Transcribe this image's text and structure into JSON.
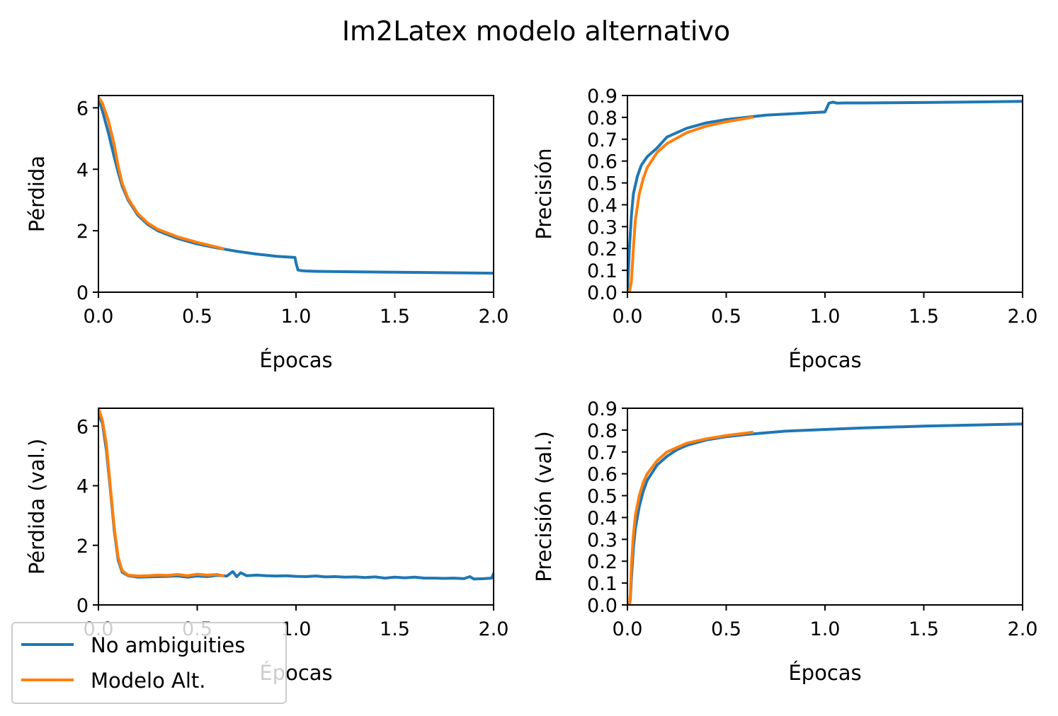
{
  "figure": {
    "title": "Im2Latex modelo alternativo",
    "colors": {
      "no_ambiguities": "#1f77b4",
      "modelo_alt": "#ff7f0e"
    }
  },
  "legend": {
    "placement": "lower-left",
    "entries": [
      {
        "label": "No ambiguities",
        "color": "#1f77b4"
      },
      {
        "label": "Modelo Alt.",
        "color": "#ff7f0e"
      }
    ]
  },
  "chart_data": [
    {
      "type": "line",
      "xlabel": "Épocas",
      "ylabel": "Pérdida",
      "xlim": [
        0,
        2.0
      ],
      "ylim": [
        0,
        6.4
      ],
      "xticks": [
        "0.0",
        "0.5",
        "1.0",
        "1.5",
        "2.0"
      ],
      "yticks": [
        "0",
        "2",
        "4",
        "6"
      ],
      "series": [
        {
          "name": "No ambiguities",
          "color": "#1f77b4",
          "x": [
            0,
            0.02,
            0.05,
            0.08,
            0.1,
            0.12,
            0.15,
            0.2,
            0.25,
            0.3,
            0.4,
            0.5,
            0.6,
            0.7,
            0.8,
            0.9,
            0.995,
            1.0,
            1.01,
            1.03,
            1.05,
            1.1,
            1.2,
            1.5,
            2.0
          ],
          "y": [
            6.3,
            5.9,
            5.2,
            4.4,
            3.9,
            3.45,
            3.0,
            2.5,
            2.2,
            2.0,
            1.75,
            1.57,
            1.44,
            1.33,
            1.24,
            1.17,
            1.13,
            0.95,
            0.72,
            0.7,
            0.69,
            0.68,
            0.67,
            0.65,
            0.62
          ]
        },
        {
          "name": "Modelo Alt.",
          "color": "#ff7f0e",
          "x": [
            0,
            0.02,
            0.05,
            0.08,
            0.1,
            0.12,
            0.15,
            0.2,
            0.25,
            0.3,
            0.4,
            0.5,
            0.63
          ],
          "y": [
            6.35,
            6.15,
            5.6,
            4.8,
            4.1,
            3.55,
            3.05,
            2.55,
            2.25,
            2.05,
            1.8,
            1.62,
            1.42
          ]
        }
      ]
    },
    {
      "type": "line",
      "xlabel": "Épocas",
      "ylabel": "Precisión",
      "xlim": [
        0,
        2.0
      ],
      "ylim": [
        0,
        0.9
      ],
      "xticks": [
        "0.0",
        "0.5",
        "1.0",
        "1.5",
        "2.0"
      ],
      "yticks": [
        "0.0",
        "0.1",
        "0.2",
        "0.3",
        "0.4",
        "0.5",
        "0.6",
        "0.7",
        "0.8",
        "0.9"
      ],
      "series": [
        {
          "name": "No ambiguities",
          "color": "#1f77b4",
          "x": [
            0,
            0.01,
            0.02,
            0.03,
            0.05,
            0.07,
            0.1,
            0.15,
            0.2,
            0.3,
            0.4,
            0.5,
            0.6,
            0.7,
            0.8,
            0.9,
            1.0,
            1.01,
            1.02,
            1.04,
            1.06,
            1.1,
            1.2,
            1.5,
            2.0
          ],
          "y": [
            0.0,
            0.2,
            0.35,
            0.45,
            0.53,
            0.58,
            0.62,
            0.66,
            0.71,
            0.75,
            0.775,
            0.79,
            0.8,
            0.81,
            0.815,
            0.82,
            0.825,
            0.845,
            0.865,
            0.87,
            0.865,
            0.866,
            0.866,
            0.868,
            0.873
          ]
        },
        {
          "name": "Modelo Alt.",
          "color": "#ff7f0e",
          "x": [
            0.01,
            0.02,
            0.03,
            0.04,
            0.06,
            0.08,
            0.1,
            0.15,
            0.2,
            0.3,
            0.4,
            0.5,
            0.63
          ],
          "y": [
            0.0,
            0.05,
            0.2,
            0.33,
            0.45,
            0.52,
            0.57,
            0.64,
            0.68,
            0.73,
            0.76,
            0.78,
            0.8
          ]
        }
      ]
    },
    {
      "type": "line",
      "xlabel": "Épocas",
      "ylabel": "Pérdida (val.)",
      "xlim": [
        0,
        2.0
      ],
      "ylim": [
        0,
        6.6
      ],
      "xticks": [
        "0.0",
        "0.5",
        "1.0",
        "1.5",
        "2.0"
      ],
      "yticks": [
        "0",
        "2",
        "4",
        "6"
      ],
      "series": [
        {
          "name": "No ambiguities",
          "color": "#1f77b4",
          "x": [
            0,
            0.02,
            0.04,
            0.06,
            0.08,
            0.1,
            0.12,
            0.15,
            0.2,
            0.25,
            0.3,
            0.35,
            0.4,
            0.45,
            0.5,
            0.55,
            0.6,
            0.65,
            0.68,
            0.7,
            0.72,
            0.75,
            0.8,
            0.85,
            0.9,
            0.95,
            1.0,
            1.05,
            1.1,
            1.15,
            1.2,
            1.25,
            1.3,
            1.35,
            1.4,
            1.45,
            1.5,
            1.55,
            1.6,
            1.65,
            1.7,
            1.75,
            1.8,
            1.85,
            1.88,
            1.9,
            1.95,
            1.99,
            2.0
          ],
          "y": [
            6.4,
            6.1,
            5.2,
            3.9,
            2.5,
            1.5,
            1.1,
            0.98,
            0.93,
            0.94,
            0.95,
            0.96,
            0.97,
            0.93,
            0.97,
            0.95,
            0.99,
            0.97,
            1.12,
            0.95,
            1.08,
            0.98,
            1.0,
            0.98,
            0.97,
            0.98,
            0.96,
            0.95,
            0.97,
            0.94,
            0.95,
            0.93,
            0.94,
            0.92,
            0.94,
            0.9,
            0.93,
            0.91,
            0.93,
            0.9,
            0.9,
            0.89,
            0.9,
            0.88,
            0.95,
            0.87,
            0.88,
            0.9,
            1.05
          ]
        },
        {
          "name": "Modelo Alt.",
          "color": "#ff7f0e",
          "x": [
            0,
            0.02,
            0.04,
            0.06,
            0.08,
            0.1,
            0.12,
            0.15,
            0.2,
            0.25,
            0.3,
            0.35,
            0.4,
            0.45,
            0.5,
            0.55,
            0.6,
            0.63
          ],
          "y": [
            6.6,
            6.2,
            5.4,
            4.0,
            2.6,
            1.6,
            1.15,
            1.0,
            0.97,
            0.98,
            1.0,
            0.99,
            1.02,
            0.98,
            1.03,
            1.0,
            1.02,
            0.98
          ]
        }
      ]
    },
    {
      "type": "line",
      "xlabel": "Épocas",
      "ylabel": "Precisión (val.)",
      "xlim": [
        0,
        2.0
      ],
      "ylim": [
        0,
        0.9
      ],
      "xticks": [
        "0.0",
        "0.5",
        "1.0",
        "1.5",
        "2.0"
      ],
      "yticks": [
        "0.0",
        "0.1",
        "0.2",
        "0.3",
        "0.4",
        "0.5",
        "0.6",
        "0.7",
        "0.8",
        "0.9"
      ],
      "series": [
        {
          "name": "No ambiguities",
          "color": "#1f77b4",
          "x": [
            0.01,
            0.015,
            0.02,
            0.03,
            0.04,
            0.06,
            0.08,
            0.1,
            0.15,
            0.2,
            0.25,
            0.3,
            0.4,
            0.5,
            0.6,
            0.8,
            1.0,
            1.2,
            1.5,
            2.0
          ],
          "y": [
            0.0,
            0.03,
            0.12,
            0.26,
            0.35,
            0.45,
            0.52,
            0.57,
            0.64,
            0.68,
            0.71,
            0.73,
            0.755,
            0.77,
            0.78,
            0.795,
            0.803,
            0.81,
            0.818,
            0.828
          ]
        },
        {
          "name": "Modelo Alt.",
          "color": "#ff7f0e",
          "x": [
            0.01,
            0.015,
            0.02,
            0.03,
            0.04,
            0.06,
            0.08,
            0.1,
            0.15,
            0.2,
            0.25,
            0.3,
            0.4,
            0.5,
            0.63
          ],
          "y": [
            0.0,
            0.05,
            0.18,
            0.32,
            0.41,
            0.5,
            0.56,
            0.6,
            0.66,
            0.7,
            0.72,
            0.74,
            0.76,
            0.775,
            0.79
          ]
        }
      ]
    }
  ]
}
